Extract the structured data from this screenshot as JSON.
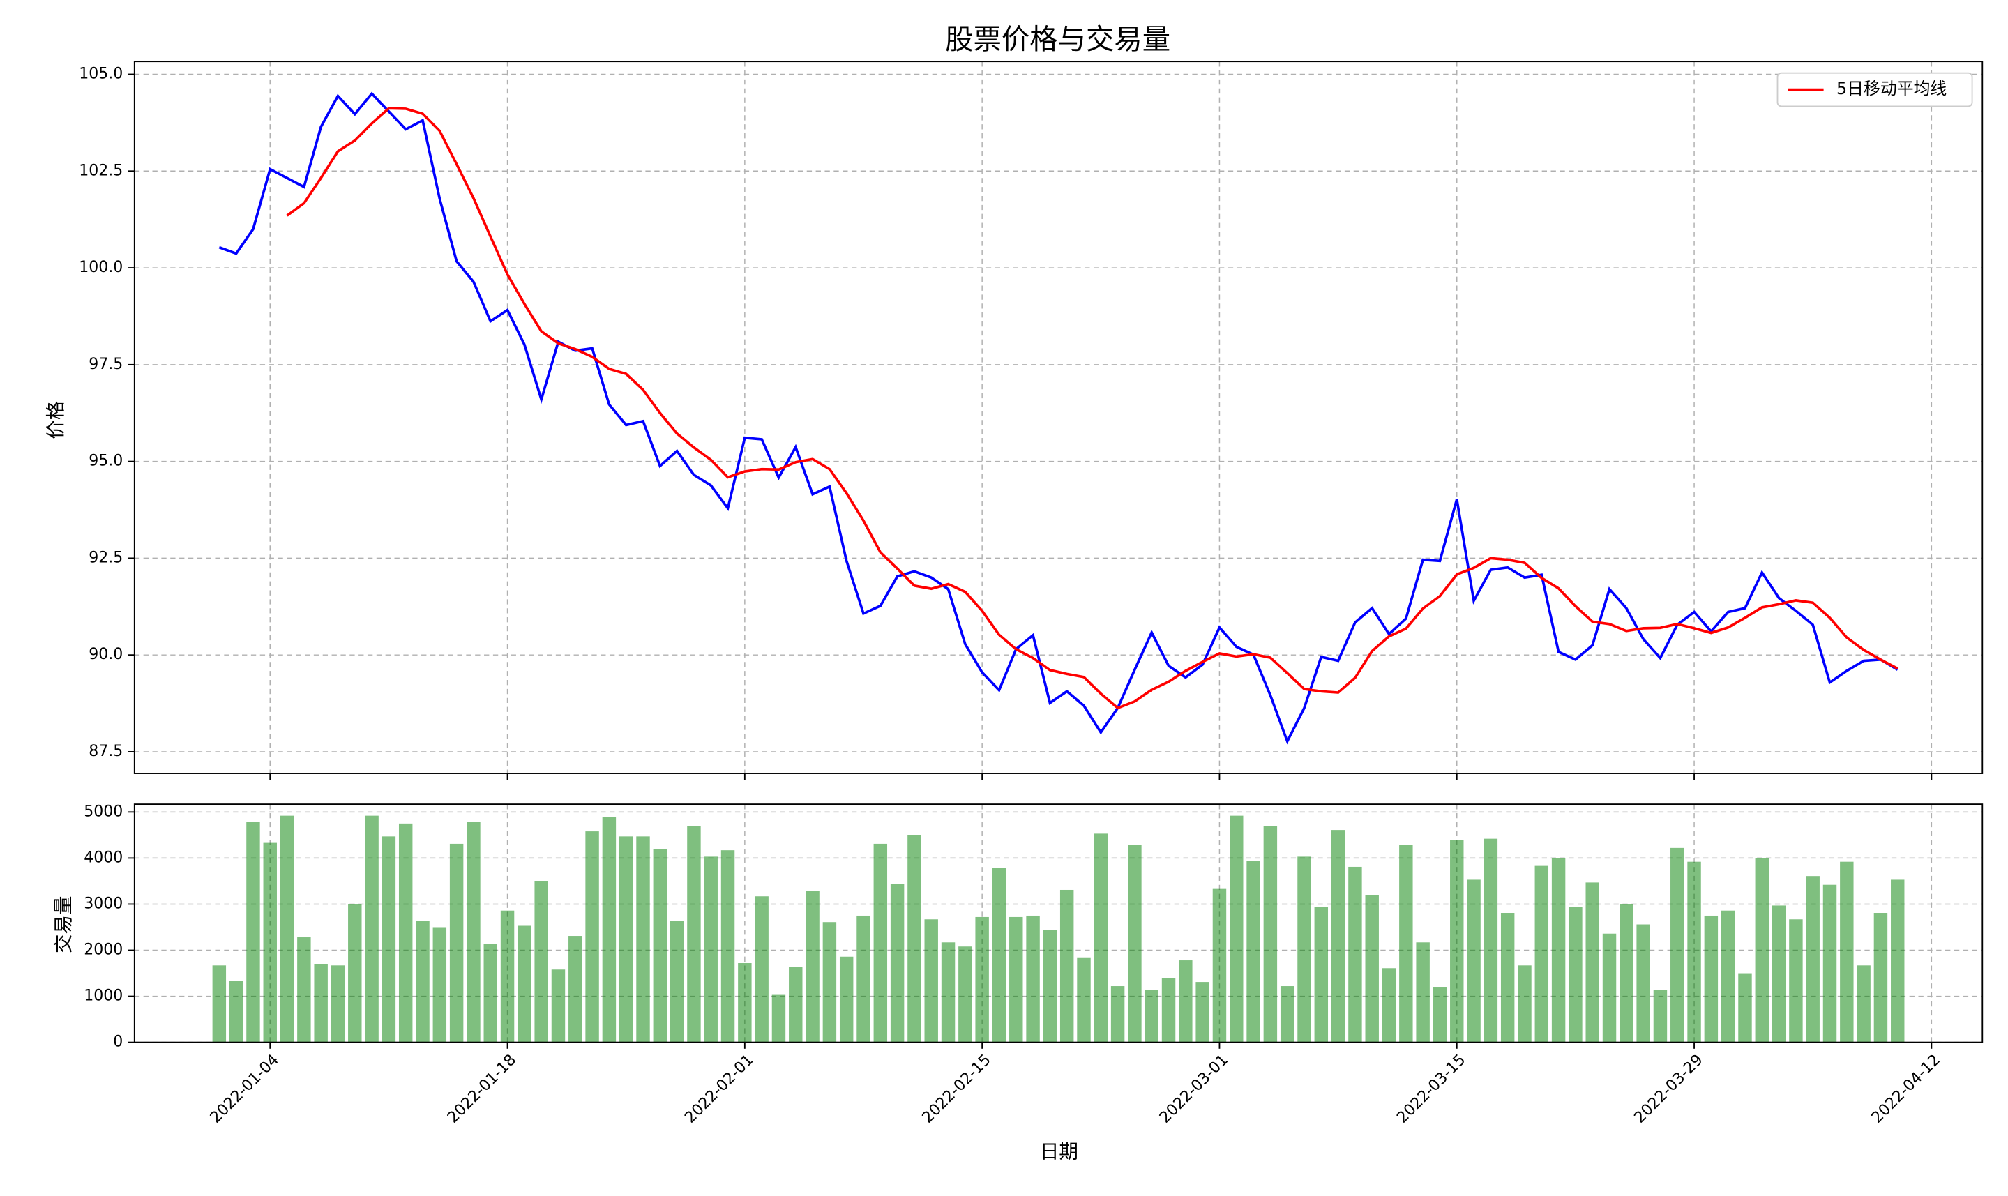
{
  "chart_data": [
    {
      "type": "line",
      "title": "股票价格与交易量",
      "ylabel": "价格",
      "x": [
        "2022-01-01",
        "2022-01-02",
        "2022-01-03",
        "2022-01-04",
        "2022-01-05",
        "2022-01-06",
        "2022-01-07",
        "2022-01-08",
        "2022-01-09",
        "2022-01-10",
        "2022-01-11",
        "2022-01-12",
        "2022-01-13",
        "2022-01-14",
        "2022-01-15",
        "2022-01-16",
        "2022-01-17",
        "2022-01-18",
        "2022-01-19",
        "2022-01-20",
        "2022-01-21",
        "2022-01-22",
        "2022-01-23",
        "2022-01-24",
        "2022-01-25",
        "2022-01-26",
        "2022-01-27",
        "2022-01-28",
        "2022-01-29",
        "2022-01-30",
        "2022-01-31",
        "2022-02-01",
        "2022-02-02",
        "2022-02-03",
        "2022-02-04",
        "2022-02-05",
        "2022-02-06",
        "2022-02-07",
        "2022-02-08",
        "2022-02-09",
        "2022-02-10",
        "2022-02-11",
        "2022-02-12",
        "2022-02-13",
        "2022-02-14",
        "2022-02-15",
        "2022-02-16",
        "2022-02-17",
        "2022-02-18",
        "2022-02-19",
        "2022-02-20",
        "2022-02-21",
        "2022-02-22",
        "2022-02-23",
        "2022-02-24",
        "2022-02-25",
        "2022-02-26",
        "2022-02-27",
        "2022-02-28",
        "2022-03-01",
        "2022-03-02",
        "2022-03-03",
        "2022-03-04",
        "2022-03-05",
        "2022-03-06",
        "2022-03-07",
        "2022-03-08",
        "2022-03-09",
        "2022-03-10",
        "2022-03-11",
        "2022-03-12",
        "2022-03-13",
        "2022-03-14",
        "2022-03-15",
        "2022-03-16",
        "2022-03-17",
        "2022-03-18",
        "2022-03-19",
        "2022-03-20",
        "2022-03-21",
        "2022-03-22",
        "2022-03-23",
        "2022-03-24",
        "2022-03-25",
        "2022-03-26",
        "2022-03-27",
        "2022-03-28",
        "2022-03-29",
        "2022-03-30",
        "2022-03-31",
        "2022-04-01",
        "2022-04-02",
        "2022-04-03",
        "2022-04-04",
        "2022-04-05",
        "2022-04-06",
        "2022-04-07",
        "2022-04-08",
        "2022-04-09",
        "2022-04-10"
      ],
      "series": [
        {
          "color": "blue",
          "values": [
            100.53,
            100.37,
            101.0,
            102.55,
            102.32,
            102.09,
            103.64,
            104.44,
            103.97,
            104.5,
            104.04,
            103.58,
            103.81,
            101.79,
            100.17,
            99.64,
            98.62,
            98.91,
            98.02,
            96.6,
            98.09,
            97.86,
            97.92,
            96.47,
            95.94,
            96.04,
            94.88,
            95.27,
            94.65,
            94.38,
            93.79,
            95.61,
            95.57,
            94.58,
            95.37,
            94.15,
            94.35,
            92.43,
            91.07,
            91.27,
            92.03,
            92.16,
            92.0,
            91.7,
            90.28,
            89.55,
            89.09,
            90.15,
            90.51,
            88.76,
            89.06,
            88.69,
            88.0,
            88.63,
            89.62,
            90.58,
            89.72,
            89.42,
            89.75,
            90.71,
            90.21,
            90.01,
            88.96,
            87.77,
            88.63,
            89.95,
            89.85,
            90.84,
            91.21,
            90.54,
            90.94,
            92.46,
            92.43,
            94.02,
            91.4,
            92.2,
            92.26,
            92.0,
            92.07,
            90.08,
            89.88,
            90.25,
            91.7,
            91.21,
            90.41,
            89.92,
            90.78,
            91.11,
            90.61,
            91.11,
            91.21,
            92.13,
            91.47,
            91.14,
            90.78,
            89.29,
            89.59,
            89.85,
            89.88,
            89.62
          ]
        },
        {
          "name": "5日移动平均线",
          "color": "red",
          "values": [
            null,
            null,
            null,
            null,
            101.35,
            101.67,
            102.32,
            103.01,
            103.29,
            103.73,
            104.12,
            104.11,
            103.98,
            103.54,
            102.68,
            101.8,
            100.81,
            99.83,
            99.07,
            98.36,
            98.05,
            97.9,
            97.7,
            97.39,
            97.26,
            96.85,
            96.25,
            95.72,
            95.36,
            95.04,
            94.59,
            94.74,
            94.8,
            94.79,
            94.98,
            95.06,
            94.8,
            94.18,
            93.47,
            92.65,
            92.23,
            91.79,
            91.71,
            91.83,
            91.63,
            91.14,
            90.52,
            90.15,
            89.92,
            89.61,
            89.51,
            89.43,
            89.0,
            88.63,
            88.8,
            89.1,
            89.31,
            89.59,
            89.82,
            90.04,
            89.96,
            90.02,
            89.93,
            89.53,
            89.12,
            89.06,
            89.03,
            89.41,
            90.1,
            90.48,
            90.68,
            91.2,
            91.52,
            92.08,
            92.25,
            92.5,
            92.46,
            92.38,
            91.99,
            91.72,
            91.26,
            90.86,
            90.8,
            90.62,
            90.69,
            90.7,
            90.8,
            90.69,
            90.57,
            90.71,
            90.96,
            91.23,
            91.31,
            91.41,
            91.35,
            90.96,
            90.45,
            90.13,
            89.88,
            89.65
          ]
        }
      ],
      "ylim": [
        86.94,
        105.33
      ],
      "yticks": [
        87.5,
        {
          "value": 90,
          "label": "90.0"
        },
        92.5,
        {
          "value": 95,
          "label": "95.0"
        },
        97.5,
        {
          "value": 100,
          "label": "100.0"
        },
        102.5,
        {
          "value": 105,
          "label": "105.0"
        }
      ],
      "grid": true,
      "legend": "upper right"
    },
    {
      "type": "bar",
      "ylabel": "交易量",
      "xlabel": "日期",
      "color": "green",
      "values": [
        1670,
        1330,
        4780,
        4330,
        4920,
        2280,
        1690,
        1670,
        3000,
        4920,
        4470,
        4750,
        2640,
        2500,
        4310,
        4780,
        2140,
        2860,
        2530,
        3500,
        1580,
        2310,
        4580,
        4890,
        4470,
        4470,
        4190,
        2640,
        4690,
        4030,
        4170,
        1720,
        3170,
        1030,
        1640,
        3280,
        2610,
        1860,
        2750,
        4310,
        3440,
        4500,
        2670,
        2170,
        2080,
        2720,
        3780,
        2720,
        2750,
        2440,
        3310,
        1830,
        4530,
        1220,
        4280,
        1140,
        1390,
        1780,
        1310,
        3330,
        4920,
        3940,
        4690,
        1220,
        4030,
        2940,
        4610,
        3810,
        3190,
        1610,
        4280,
        2170,
        1190,
        4390,
        3530,
        4420,
        2810,
        1670,
        3830,
        4000,
        2940,
        3470,
        2360,
        3000,
        2560,
        1140,
        4220,
        3920,
        2750,
        2860,
        1500,
        4000,
        2970,
        2670,
        3610,
        3420,
        3920,
        1670,
        2810,
        3530
      ],
      "ylim": [
        0,
        5170
      ],
      "yticks": [
        0,
        1000,
        2000,
        3000,
        4000,
        5000
      ],
      "xlim": [
        "2021-12-27",
        "2022-04-15"
      ],
      "xticks": [
        "2022-01-04",
        "2022-01-18",
        "2022-02-01",
        "2022-02-15",
        "2022-03-01",
        "2022-03-15",
        "2022-03-29",
        "2022-04-12"
      ],
      "grid": true
    }
  ]
}
